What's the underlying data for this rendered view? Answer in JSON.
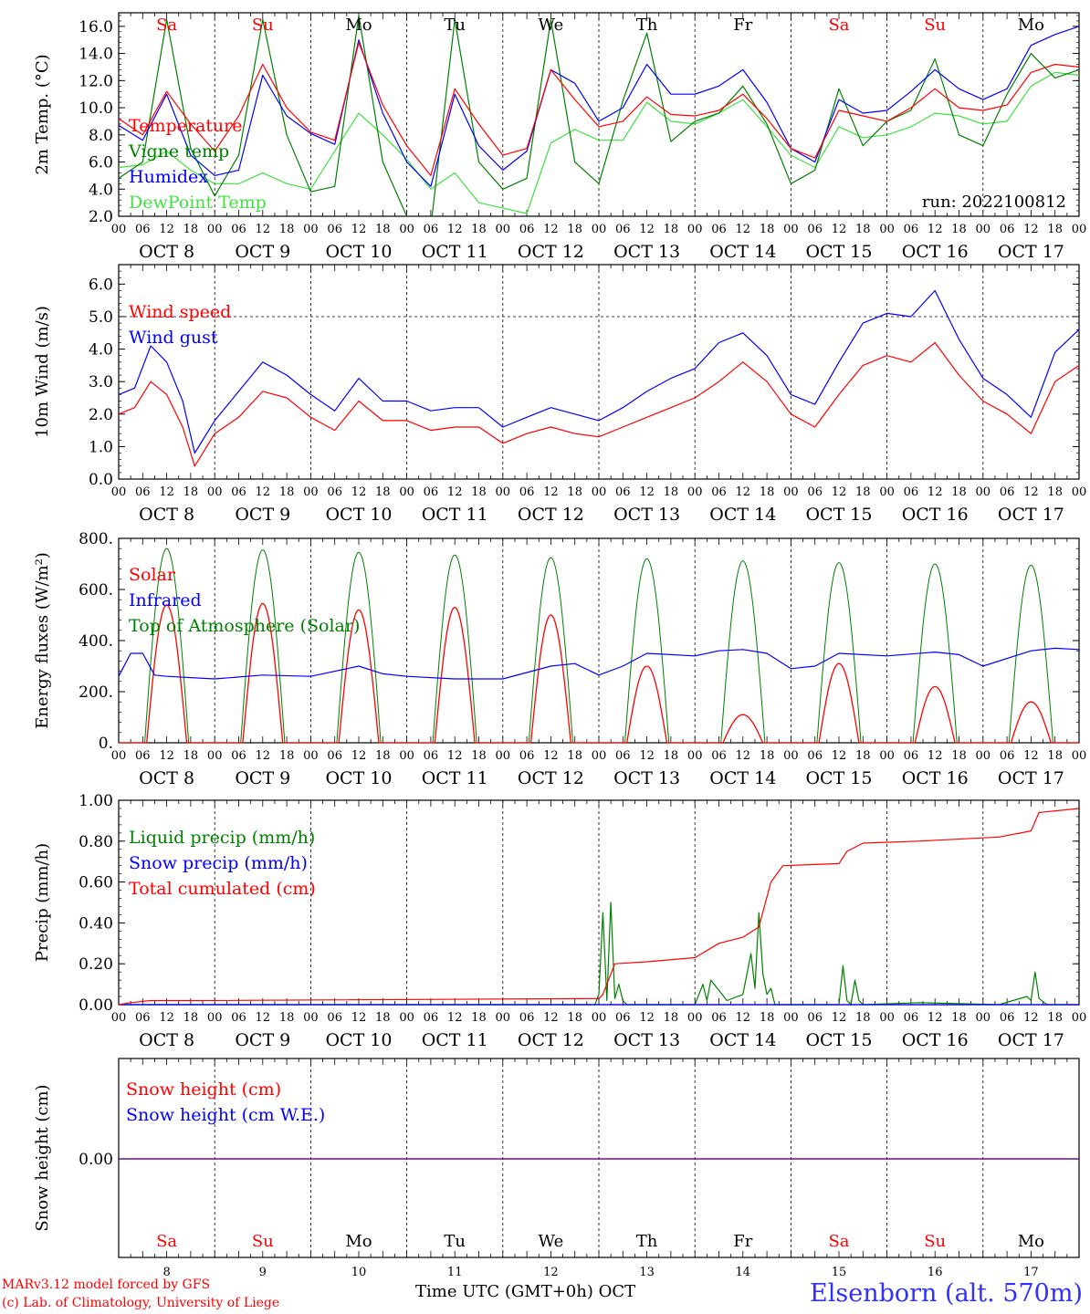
{
  "footer": {
    "credit_line1": "MARv3.12 model forced by GFS",
    "credit_line2": "(c) Lab. of Climatology, University of Liege",
    "xlabel": "Time UTC (GMT+0h) OCT",
    "station": "Elsenborn (alt. 570m)"
  },
  "run_label": "run: 2022100812",
  "days": [
    {
      "abbr": "Sa",
      "date": "OCT  8",
      "num": "8",
      "weekend": true
    },
    {
      "abbr": "Su",
      "date": "OCT  9",
      "num": "9",
      "weekend": true
    },
    {
      "abbr": "Mo",
      "date": "OCT 10",
      "num": "10",
      "weekend": false
    },
    {
      "abbr": "Tu",
      "date": "OCT 11",
      "num": "11",
      "weekend": false
    },
    {
      "abbr": "We",
      "date": "OCT 12",
      "num": "12",
      "weekend": false
    },
    {
      "abbr": "Th",
      "date": "OCT 13",
      "num": "13",
      "weekend": false
    },
    {
      "abbr": "Fr",
      "date": "OCT 14",
      "num": "14",
      "weekend": false
    },
    {
      "abbr": "Sa",
      "date": "OCT 15",
      "num": "15",
      "weekend": true
    },
    {
      "abbr": "Su",
      "date": "OCT 16",
      "num": "16",
      "weekend": true
    },
    {
      "abbr": "Mo",
      "date": "OCT 17",
      "num": "17",
      "weekend": false
    }
  ],
  "hour_ticks": [
    "00",
    "06",
    "12",
    "18"
  ],
  "final_tick": "00",
  "colors": {
    "red": "#ff0000",
    "blue": "#0000ff",
    "green": "#008000",
    "lightgreen": "#40e040",
    "purple": "#800080"
  },
  "chart_data": [
    {
      "id": "temperature",
      "type": "line",
      "ylabel": "2m Temp. (°C)",
      "ylim": [
        2,
        17
      ],
      "yticks": [
        2,
        4,
        6,
        8,
        10,
        12,
        14,
        16
      ],
      "ytick_labels": [
        "2.0",
        "4.0",
        "6.0",
        "8.0",
        "10.0",
        "12.0",
        "14.0",
        "16.0"
      ],
      "x_unit": "hours since 2022-10-08 00 UTC",
      "xlim": [
        0,
        240
      ],
      "series": [
        {
          "name": "Temperature",
          "color": "red",
          "x": [
            0,
            6,
            12,
            18,
            24,
            30,
            36,
            42,
            48,
            54,
            60,
            66,
            72,
            78,
            84,
            90,
            96,
            102,
            108,
            114,
            120,
            126,
            132,
            138,
            144,
            150,
            156,
            162,
            168,
            174,
            180,
            186,
            192,
            198,
            204,
            210,
            216,
            222,
            228,
            234,
            240
          ],
          "y": [
            9.2,
            8.0,
            11.2,
            8.8,
            6.8,
            9.4,
            13.2,
            10.0,
            8.2,
            7.6,
            14.8,
            10.2,
            7.2,
            5.0,
            11.4,
            8.8,
            6.5,
            7.0,
            12.8,
            10.6,
            8.6,
            9.0,
            10.8,
            9.5,
            9.4,
            9.8,
            11.0,
            9.2,
            7.0,
            6.3,
            9.8,
            9.4,
            9.0,
            10.0,
            11.4,
            10.0,
            9.8,
            10.2,
            12.6,
            13.2,
            13.0
          ]
        },
        {
          "name": "Vigne temp",
          "color": "green",
          "x": [
            0,
            6,
            12,
            18,
            24,
            30,
            36,
            42,
            48,
            54,
            60,
            66,
            72,
            78,
            84,
            90,
            96,
            102,
            108,
            114,
            120,
            126,
            132,
            138,
            144,
            150,
            156,
            162,
            168,
            174,
            180,
            186,
            192,
            198,
            204,
            210,
            216,
            222,
            228,
            234,
            240
          ],
          "y": [
            4.8,
            6.0,
            16.5,
            7.0,
            3.5,
            6.5,
            16.5,
            8.0,
            3.8,
            4.2,
            16.8,
            6.0,
            2.0,
            1.2,
            16.5,
            6.0,
            4.0,
            4.8,
            16.5,
            6.0,
            4.4,
            10.5,
            15.5,
            7.5,
            9.0,
            9.6,
            11.6,
            8.8,
            4.4,
            5.4,
            11.4,
            7.2,
            9.0,
            9.8,
            13.6,
            8.0,
            7.2,
            11.0,
            14.0,
            12.2,
            12.8
          ]
        },
        {
          "name": "Humidex",
          "color": "blue",
          "x": [
            0,
            6,
            12,
            18,
            24,
            30,
            36,
            42,
            48,
            54,
            60,
            66,
            72,
            78,
            84,
            90,
            96,
            102,
            108,
            114,
            120,
            126,
            132,
            138,
            144,
            150,
            156,
            162,
            168,
            174,
            180,
            186,
            192,
            198,
            204,
            210,
            216,
            222,
            228,
            234,
            240
          ],
          "y": [
            8.7,
            7.6,
            11.0,
            6.5,
            5.0,
            5.4,
            12.4,
            9.4,
            8.1,
            7.3,
            15.0,
            9.6,
            6.0,
            4.2,
            11.0,
            7.2,
            5.4,
            6.8,
            12.8,
            11.8,
            9.0,
            10.0,
            13.2,
            11.0,
            11.0,
            11.6,
            12.8,
            10.4,
            7.0,
            6.0,
            10.6,
            9.6,
            9.8,
            11.2,
            12.8,
            11.4,
            10.6,
            11.4,
            14.6,
            15.4,
            16.0
          ]
        },
        {
          "name": "DewPoint Temp",
          "color": "lightgreen",
          "x": [
            0,
            6,
            12,
            18,
            24,
            30,
            36,
            42,
            48,
            54,
            60,
            66,
            72,
            78,
            84,
            90,
            96,
            102,
            108,
            114,
            120,
            126,
            132,
            138,
            144,
            150,
            156,
            162,
            168,
            174,
            180,
            186,
            192,
            198,
            204,
            210,
            216,
            222,
            228,
            234,
            240
          ],
          "y": [
            5.6,
            5.8,
            6.8,
            5.4,
            4.4,
            4.4,
            5.2,
            4.4,
            4.0,
            6.8,
            9.6,
            8.0,
            6.2,
            4.0,
            5.2,
            3.0,
            2.6,
            2.2,
            7.4,
            8.4,
            7.6,
            7.6,
            10.4,
            9.0,
            8.8,
            9.6,
            10.6,
            8.6,
            6.5,
            5.6,
            8.6,
            7.8,
            8.0,
            8.6,
            9.6,
            9.4,
            8.8,
            9.0,
            11.6,
            12.6,
            12.4
          ]
        }
      ]
    },
    {
      "id": "wind",
      "type": "line",
      "ylabel": "10m Wind (m/s)",
      "ylim": [
        0,
        6.6
      ],
      "yticks": [
        0,
        1,
        2,
        3,
        4,
        5,
        6
      ],
      "ytick_labels": [
        "0.0",
        "1.0",
        "2.0",
        "3.0",
        "4.0",
        "5.0",
        "6.0"
      ],
      "reference_line": 5.0,
      "xlim": [
        0,
        240
      ],
      "series": [
        {
          "name": "Wind speed",
          "color": "red",
          "x": [
            0,
            4,
            8,
            12,
            16,
            19,
            24,
            30,
            36,
            42,
            48,
            54,
            60,
            66,
            72,
            78,
            84,
            90,
            96,
            102,
            108,
            114,
            120,
            126,
            132,
            138,
            144,
            150,
            156,
            162,
            168,
            174,
            180,
            186,
            192,
            198,
            204,
            210,
            216,
            222,
            228,
            234,
            240
          ],
          "y": [
            2.0,
            2.2,
            3.0,
            2.6,
            1.6,
            0.4,
            1.4,
            1.9,
            2.7,
            2.5,
            1.9,
            1.5,
            2.4,
            1.8,
            1.8,
            1.5,
            1.6,
            1.6,
            1.1,
            1.4,
            1.6,
            1.4,
            1.3,
            1.6,
            1.9,
            2.2,
            2.5,
            3.0,
            3.6,
            3.0,
            2.0,
            1.6,
            2.6,
            3.5,
            3.8,
            3.6,
            4.2,
            3.2,
            2.4,
            2.0,
            1.4,
            3.0,
            3.5
          ]
        },
        {
          "name": "Wind gust",
          "color": "blue",
          "x": [
            0,
            4,
            8,
            12,
            16,
            19,
            24,
            30,
            36,
            42,
            48,
            54,
            60,
            66,
            72,
            78,
            84,
            90,
            96,
            102,
            108,
            114,
            120,
            126,
            132,
            138,
            144,
            150,
            156,
            162,
            168,
            174,
            180,
            186,
            192,
            198,
            204,
            210,
            216,
            222,
            228,
            234,
            240
          ],
          "y": [
            2.6,
            2.8,
            4.1,
            3.6,
            2.4,
            0.8,
            1.8,
            2.7,
            3.6,
            3.2,
            2.6,
            2.1,
            3.1,
            2.4,
            2.4,
            2.1,
            2.2,
            2.2,
            1.6,
            1.9,
            2.2,
            2.0,
            1.8,
            2.2,
            2.7,
            3.1,
            3.4,
            4.2,
            4.5,
            3.8,
            2.6,
            2.3,
            3.6,
            4.8,
            5.1,
            5.0,
            5.8,
            4.3,
            3.1,
            2.6,
            1.9,
            3.9,
            4.6
          ]
        }
      ]
    },
    {
      "id": "energy",
      "type": "line",
      "ylabel": "Energy fluxes (W/m²)",
      "ylim": [
        0,
        800
      ],
      "yticks": [
        0,
        200,
        400,
        600,
        800
      ],
      "ytick_labels": [
        "0.",
        "200.",
        "400.",
        "600.",
        "800."
      ],
      "xlim": [
        0,
        240
      ],
      "series": [
        {
          "name": "Solar",
          "color": "red",
          "daily_peaks": [
            540,
            545,
            520,
            530,
            500,
            300,
            110,
            310,
            220,
            160
          ],
          "day_window_hours": [
            7,
            17
          ]
        },
        {
          "name": "Infrared",
          "color": "blue",
          "x": [
            0,
            3,
            6,
            9,
            12,
            24,
            36,
            48,
            60,
            66,
            72,
            84,
            96,
            108,
            114,
            120,
            126,
            132,
            144,
            150,
            156,
            162,
            168,
            174,
            180,
            192,
            204,
            210,
            216,
            228,
            234,
            240
          ],
          "y": [
            260,
            350,
            350,
            265,
            260,
            250,
            265,
            260,
            300,
            270,
            260,
            250,
            250,
            300,
            310,
            265,
            300,
            350,
            340,
            360,
            365,
            350,
            290,
            300,
            350,
            340,
            355,
            345,
            300,
            360,
            370,
            365
          ]
        },
        {
          "name": "Top of Atmosphere (Solar)",
          "color": "green",
          "daily_peaks": [
            760,
            755,
            745,
            735,
            725,
            720,
            712,
            705,
            700,
            695
          ],
          "day_window_hours": [
            6.5,
            17.5
          ]
        }
      ]
    },
    {
      "id": "precip",
      "type": "line",
      "ylabel": "Precip (mm/h)",
      "ylim": [
        0,
        1.0
      ],
      "yticks": [
        0,
        0.2,
        0.4,
        0.6,
        0.8,
        1.0
      ],
      "ytick_labels": [
        "0.00",
        "0.20",
        "0.40",
        "0.60",
        "0.80",
        "1.00"
      ],
      "xlim": [
        0,
        240
      ],
      "series": [
        {
          "name": "Liquid precip (mm/h)",
          "color": "green",
          "x": [
            0,
            119,
            120,
            121,
            122,
            123,
            124,
            125,
            126,
            127,
            144,
            146,
            147,
            148,
            152,
            156,
            158,
            159,
            160,
            161,
            162,
            163,
            164,
            170,
            180,
            181,
            182,
            183,
            184,
            185,
            186,
            200,
            220,
            227,
            228,
            229,
            230,
            232,
            240
          ],
          "y": [
            0,
            0,
            0.05,
            0.45,
            0.02,
            0.5,
            0.03,
            0.1,
            0.02,
            0,
            0,
            0.1,
            0.02,
            0.12,
            0.02,
            0.05,
            0.25,
            0.08,
            0.45,
            0.15,
            0.05,
            0.08,
            0,
            0,
            0,
            0.19,
            0.02,
            0,
            0.12,
            0.02,
            0,
            0.01,
            0,
            0.04,
            0.02,
            0.16,
            0.03,
            0,
            0
          ]
        },
        {
          "name": "Snow precip (mm/h)",
          "color": "blue",
          "x": [
            0,
            240
          ],
          "y": [
            0,
            0
          ]
        },
        {
          "name": "Total cumulated (cm)",
          "color": "red",
          "x": [
            0,
            3,
            8,
            20,
            120,
            121,
            124,
            132,
            144,
            150,
            156,
            160,
            163,
            166,
            180,
            182,
            186,
            200,
            220,
            228,
            230,
            240
          ],
          "y": [
            0,
            0.01,
            0.02,
            0.02,
            0.03,
            0.05,
            0.2,
            0.21,
            0.23,
            0.3,
            0.33,
            0.38,
            0.6,
            0.68,
            0.69,
            0.75,
            0.79,
            0.8,
            0.82,
            0.85,
            0.94,
            0.96
          ]
        }
      ]
    },
    {
      "id": "snow",
      "type": "line",
      "ylabel": "Snow height (cm)",
      "yticks": [
        0
      ],
      "ytick_labels": [
        "0.00"
      ],
      "xlim": [
        0,
        240
      ],
      "series": [
        {
          "name": "Snow height (cm)",
          "color": "red",
          "x": [
            0,
            240
          ],
          "y": [
            0,
            0
          ]
        },
        {
          "name": "Snow height (cm W.E.)",
          "color": "blue",
          "x": [
            0,
            240
          ],
          "y": [
            0,
            0
          ]
        }
      ]
    }
  ]
}
